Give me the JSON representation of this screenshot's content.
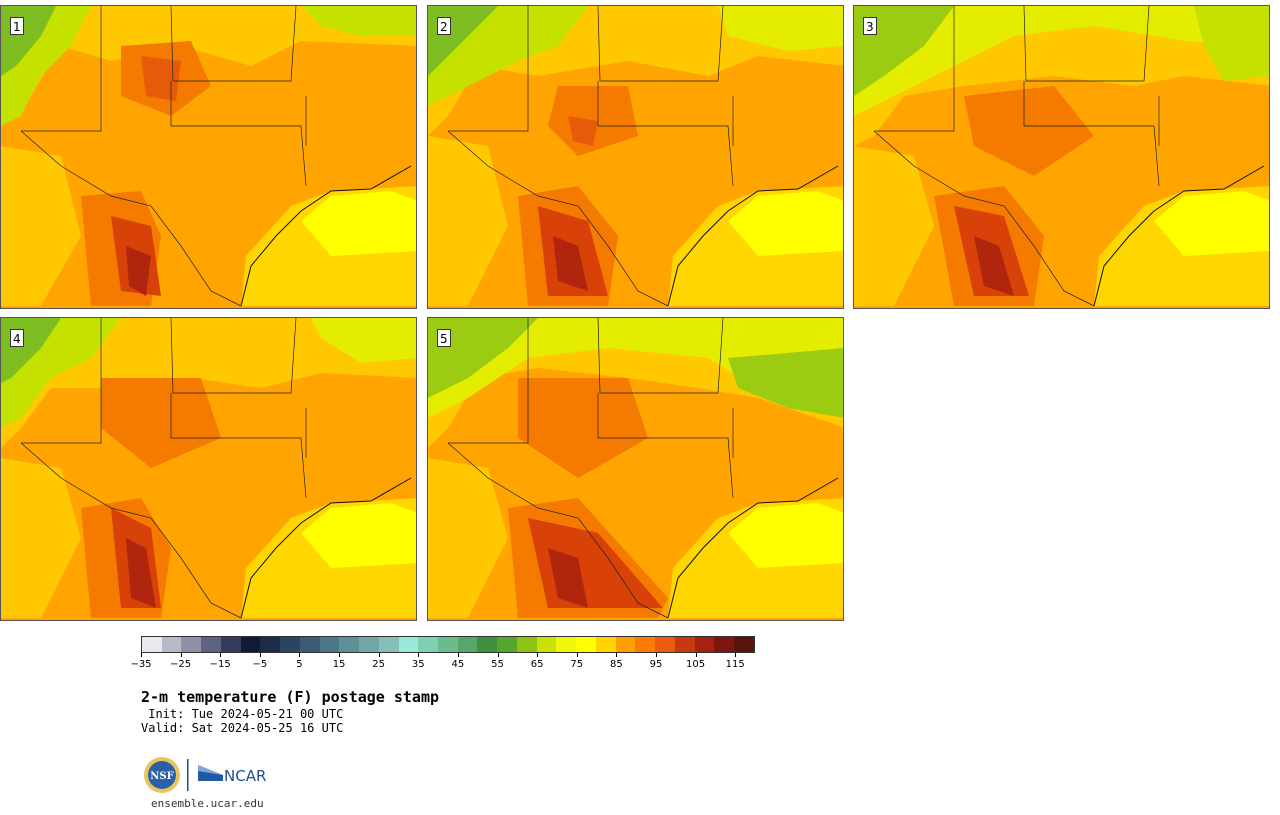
{
  "panels": [
    {
      "label": "1"
    },
    {
      "label": "2"
    },
    {
      "label": "3"
    },
    {
      "label": "4"
    },
    {
      "label": "5"
    }
  ],
  "colorbar": {
    "colors": [
      "#e8e8ee",
      "#b8b9c9",
      "#8f91a8",
      "#5e6283",
      "#343c5d",
      "#0f1a35",
      "#1c2b4a",
      "#2a4563",
      "#3a5c77",
      "#4d7687",
      "#5f8f97",
      "#72a7a8",
      "#86bfb8",
      "#9be7d8",
      "#7fcfb0",
      "#6cbb8e",
      "#56a86a",
      "#3f9140",
      "#56a62b",
      "#8cc416",
      "#c9e20b",
      "#f0f50b",
      "#ffff00",
      "#ffd200",
      "#ff9e00",
      "#ff7a00",
      "#ef5b0e",
      "#c9390f",
      "#a62210",
      "#7e150f",
      "#5a130d"
    ],
    "ticks": [
      "−35",
      "−25",
      "−15",
      "−5",
      "5",
      "15",
      "25",
      "35",
      "45",
      "55",
      "65",
      "75",
      "85",
      "95",
      "105",
      "115"
    ]
  },
  "title": "2-m temperature (F) postage stamp",
  "init": " Init: Tue 2024-05-21 00 UTC",
  "valid": "Valid: Sat 2024-05-25 16 UTC",
  "logos": {
    "nsf": "NSF",
    "ncar": "NCAR"
  },
  "site": "ensemble.ucar.edu"
}
